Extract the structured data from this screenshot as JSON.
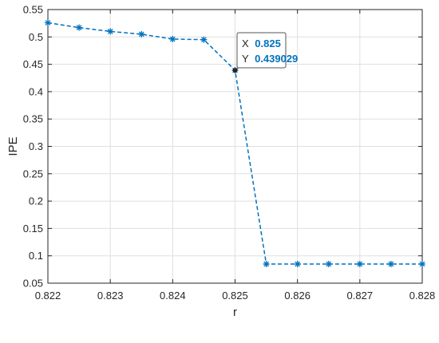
{
  "chart_data": {
    "type": "line",
    "title": "",
    "xlabel": "r",
    "ylabel": "IPE",
    "xlim": [
      0.822,
      0.828
    ],
    "ylim": [
      0.05,
      0.55
    ],
    "grid": true,
    "xticks": [
      "0.822",
      "0.823",
      "0.824",
      "0.825",
      "0.826",
      "0.827",
      "0.828"
    ],
    "yticks": [
      "0.05",
      "0.1",
      "0.15",
      "0.2",
      "0.25",
      "0.3",
      "0.35",
      "0.4",
      "0.45",
      "0.5",
      "0.55"
    ],
    "series": [
      {
        "color": "#0072BD",
        "line_style": "dashed",
        "marker": "asterisk",
        "x": [
          0.822,
          0.8225,
          0.823,
          0.8235,
          0.824,
          0.8245,
          0.825,
          0.8255,
          0.826,
          0.8265,
          0.827,
          0.8275,
          0.828
        ],
        "y": [
          0.526,
          0.517,
          0.51,
          0.505,
          0.496,
          0.495,
          0.439029,
          0.085,
          0.085,
          0.085,
          0.085,
          0.085,
          0.085
        ]
      }
    ],
    "datatip": {
      "x_label": "X",
      "x_value": "0.825",
      "y_label": "Y",
      "y_value": "0.439029",
      "x": 0.825,
      "y": 0.439029
    }
  }
}
